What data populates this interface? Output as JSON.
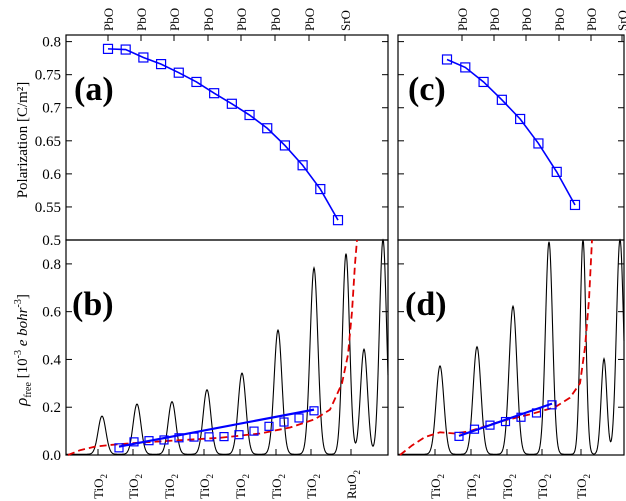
{
  "chart_data": [
    {
      "panel": "a",
      "type": "line",
      "label": "(a)",
      "ylabel": "Polarization [C/m²]",
      "ylim": [
        0.5,
        0.81
      ],
      "yticks": [
        "0.5",
        "0.55",
        "0.6",
        "0.65",
        "0.7",
        "0.75",
        "0.8"
      ],
      "top_layer_labels": [
        "PbO",
        "PbO",
        "PbO",
        "PbO",
        "PbO",
        "PbO",
        "PbO",
        "SrO"
      ],
      "x": [
        1,
        2,
        3,
        4,
        5,
        6,
        7,
        8,
        9,
        10,
        11,
        12,
        13,
        14
      ],
      "values": [
        0.789,
        0.788,
        0.776,
        0.766,
        0.753,
        0.739,
        0.722,
        0.706,
        0.689,
        0.669,
        0.643,
        0.613,
        0.577,
        0.53
      ],
      "marker": "open-square",
      "color": "#0000ff"
    },
    {
      "panel": "c",
      "type": "line",
      "label": "(c)",
      "ylim": [
        0.5,
        0.81
      ],
      "top_layer_labels": [
        "PbO",
        "PbO",
        "PbO",
        "PbO",
        "PbO",
        "SrO"
      ],
      "x": [
        1,
        2,
        3,
        4,
        5,
        6,
        7,
        8
      ],
      "values": [
        0.773,
        0.761,
        0.739,
        0.712,
        0.683,
        0.646,
        0.603,
        0.553
      ],
      "marker": "open-square",
      "color": "#0000ff"
    },
    {
      "panel": "b",
      "type": "line",
      "label": "(b)",
      "ylabel_main": "ρ",
      "ylabel_sub": "free",
      "ylabel_units_pre": "[10",
      "ylabel_units_exp1": "-3",
      "ylabel_units_mid": " e bohr",
      "ylabel_units_exp2": "-3",
      "ylabel_units_post": "]",
      "ylim": [
        0,
        0.9
      ],
      "yticks": [
        "0.0",
        "0.2",
        "0.4",
        "0.6",
        "0.8"
      ],
      "bottom_layer_labels": [
        "TiO",
        "TiO",
        "TiO",
        "TiO",
        "TiO",
        "TiO",
        "TiO",
        "RuO"
      ],
      "bottom_layer_subscript": "2",
      "peak_heights": [
        0.16,
        0.21,
        0.22,
        0.27,
        0.34,
        0.52,
        0.78,
        0.84,
        0.44,
        0.9
      ],
      "box_values": [
        0.03,
        0.055,
        0.06,
        0.063,
        0.072,
        0.075,
        0.076,
        0.077,
        0.085,
        0.1,
        0.12,
        0.138,
        0.155,
        0.185
      ],
      "fit_line": [
        0.035,
        0.19
      ],
      "avg_curve_color": "#e00000",
      "density_color": "#000000"
    },
    {
      "panel": "d",
      "type": "line",
      "label": "(d)",
      "ylim": [
        0,
        0.9
      ],
      "bottom_layer_labels": [
        "TiO",
        "TiO",
        "TiO",
        "TiO",
        "TiO"
      ],
      "bottom_layer_subscript": "2",
      "peak_heights": [
        0.37,
        0.45,
        0.62,
        0.89,
        0.4,
        0.9
      ],
      "box_values": [
        0.078,
        0.108,
        0.125,
        0.14,
        0.158,
        0.176,
        0.21
      ],
      "fit_line": [
        0.08,
        0.215
      ],
      "avg_curve_color": "#e00000",
      "density_color": "#000000"
    }
  ]
}
